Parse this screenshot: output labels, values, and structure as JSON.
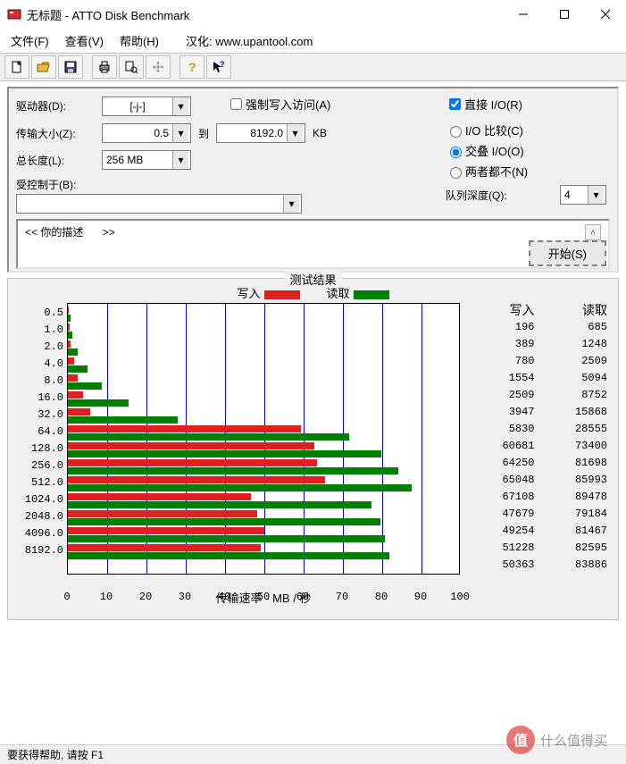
{
  "window": {
    "title": "无标题 - ATTO Disk Benchmark",
    "app_icon_color": "#d03030"
  },
  "menu": {
    "file": "文件(F)",
    "view": "查看(V)",
    "help": "帮助(H)",
    "localize": "汉化: www.upantool.com"
  },
  "toolbar": {
    "new": "new",
    "open": "open",
    "save": "save",
    "print": "print",
    "preview": "preview",
    "move": "move",
    "help": "help",
    "context": "context-help"
  },
  "form": {
    "drive_label": "驱动器(D):",
    "drive_value": "[-j-]",
    "xfer_label": "传输大小(Z):",
    "xfer_from": "0.5",
    "xfer_to_label": "到",
    "xfer_to": "8192.0",
    "xfer_unit": "KB",
    "length_label": "总长度(L):",
    "length_value": "256 MB",
    "force_write": "强制写入访问(A)",
    "direct_io": "直接 I/O(R)",
    "io_compare": "I/O 比较(C)",
    "overlap_io": "交叠 I/O(O)",
    "neither": "两者都不(N)",
    "queue_label": "队列深度(Q):",
    "queue_value": "4",
    "controlled_label": "受控制于(B):",
    "controlled_value": "",
    "start": "开始(S)",
    "desc_left": "<<  你的描述",
    "desc_right": ">>"
  },
  "chart": {
    "title": "测试结果",
    "legend_write": "写入",
    "legend_read": "读取",
    "write_color": "#e02020",
    "read_color": "#008000",
    "grid_color": "#0000ff",
    "bg": "#ffffff",
    "xmin": 0,
    "xmax": 100,
    "xstep": 10,
    "xaxis_label": "传输速率 - MB / 秒",
    "rows": [
      {
        "size": "0.5",
        "write": 196,
        "read": 685,
        "w_mb": 0.19,
        "r_mb": 0.67
      },
      {
        "size": "1.0",
        "write": 389,
        "read": 1248,
        "w_mb": 0.38,
        "r_mb": 1.22
      },
      {
        "size": "2.0",
        "write": 780,
        "read": 2509,
        "w_mb": 0.76,
        "r_mb": 2.45
      },
      {
        "size": "4.0",
        "write": 1554,
        "read": 5094,
        "w_mb": 1.52,
        "r_mb": 4.97
      },
      {
        "size": "8.0",
        "write": 2509,
        "read": 8752,
        "w_mb": 2.45,
        "r_mb": 8.55
      },
      {
        "size": "16.0",
        "write": 3947,
        "read": 15868,
        "w_mb": 3.85,
        "r_mb": 15.5
      },
      {
        "size": "32.0",
        "write": 5830,
        "read": 28555,
        "w_mb": 5.69,
        "r_mb": 27.9
      },
      {
        "size": "64.0",
        "write": 60681,
        "read": 73400,
        "w_mb": 59.3,
        "r_mb": 71.7
      },
      {
        "size": "128.0",
        "write": 64250,
        "read": 81698,
        "w_mb": 62.7,
        "r_mb": 79.8
      },
      {
        "size": "256.0",
        "write": 65048,
        "read": 85993,
        "w_mb": 63.5,
        "r_mb": 84.0
      },
      {
        "size": "512.0",
        "write": 67108,
        "read": 89478,
        "w_mb": 65.5,
        "r_mb": 87.4
      },
      {
        "size": "1024.0",
        "write": 47679,
        "read": 79184,
        "w_mb": 46.6,
        "r_mb": 77.3
      },
      {
        "size": "2048.0",
        "write": 49254,
        "read": 81467,
        "w_mb": 48.1,
        "r_mb": 79.6
      },
      {
        "size": "4096.0",
        "write": 51228,
        "read": 82595,
        "w_mb": 50.0,
        "r_mb": 80.7
      },
      {
        "size": "8192.0",
        "write": 50363,
        "read": 83886,
        "w_mb": 49.2,
        "r_mb": 81.9
      }
    ],
    "col_write_header": "写入",
    "col_read_header": "读取"
  },
  "status": {
    "text": "要获得帮助, 请按 F1",
    "watermark": "什么值得买"
  }
}
